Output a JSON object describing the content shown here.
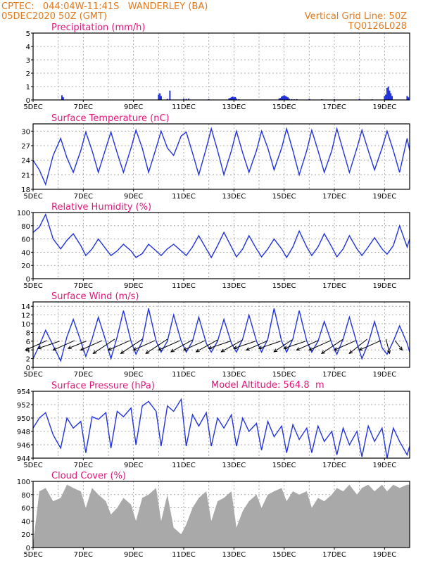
{
  "header": {
    "line1": "CPTEC:   044:04W-11:41S   WANDERLEY (BA)",
    "line2": "05DEC2020 50Z (GMT)",
    "grid_line": "Vertical Grid Line: 50Z",
    "code": "TQ0126L028"
  },
  "model_altitude": "Model Altitude: 564.8  m",
  "colors": {
    "header": "#e07a1f",
    "title": "#e0177a",
    "series": "#2233dd",
    "cloud": "#a9a9a9"
  },
  "chart_data": [
    {
      "id": "precip",
      "type": "bar",
      "title": "Precipitation (mm/h)",
      "ylim": [
        0,
        5
      ],
      "yticks": [
        0,
        1,
        2,
        3,
        4,
        5
      ],
      "xlim": [
        5,
        20
      ],
      "xticks": [
        "5DEC",
        "7DEC",
        "9DEC",
        "11DEC",
        "13DEC",
        "15DEC",
        "17DEC",
        "19DEC"
      ],
      "grid": true,
      "x": [
        6.15,
        6.2,
        10.0,
        10.05,
        10.1,
        10.35,
        10.45,
        11.0,
        11.1,
        11.2,
        12.0,
        12.8,
        12.85,
        12.9,
        12.95,
        13.0,
        13.05,
        13.1,
        13.2,
        14.8,
        14.85,
        14.9,
        14.95,
        15.0,
        15.05,
        15.1,
        15.15,
        15.2,
        15.3,
        15.4,
        15.5,
        16.0,
        16.5,
        17.0,
        18.0,
        18.5,
        19.0,
        19.05,
        19.1,
        19.15,
        19.2,
        19.25,
        19.3,
        19.9,
        19.95
      ],
      "values": [
        0.35,
        0.2,
        0.4,
        0.5,
        0.3,
        0.08,
        0.7,
        0.1,
        0.08,
        0.1,
        0.06,
        0.1,
        0.15,
        0.2,
        0.25,
        0.2,
        0.22,
        0.1,
        0.05,
        0.1,
        0.15,
        0.25,
        0.3,
        0.35,
        0.3,
        0.25,
        0.2,
        0.1,
        0.06,
        0.05,
        0.06,
        0.08,
        0.05,
        0.06,
        0.08,
        0.05,
        0.3,
        0.4,
        0.9,
        1.0,
        0.7,
        0.5,
        0.3,
        0.3,
        0.2
      ]
    },
    {
      "id": "temp",
      "type": "line",
      "title": "Surface Temperature (nC)",
      "ylim": [
        18,
        31.5
      ],
      "yticks": [
        18,
        21,
        24,
        27,
        30
      ],
      "xlim": [
        5,
        20
      ],
      "xticks": [
        "5DEC",
        "7DEC",
        "9DEC",
        "11DEC",
        "13DEC",
        "15DEC",
        "17DEC",
        "19DEC"
      ],
      "grid": true,
      "x": [
        5.0,
        5.25,
        5.5,
        5.8,
        6.1,
        6.35,
        6.6,
        6.9,
        7.1,
        7.35,
        7.6,
        7.9,
        8.1,
        8.35,
        8.6,
        8.9,
        9.1,
        9.35,
        9.6,
        9.9,
        10.1,
        10.35,
        10.6,
        10.9,
        11.1,
        11.35,
        11.6,
        11.9,
        12.1,
        12.35,
        12.6,
        12.9,
        13.1,
        13.35,
        13.6,
        13.9,
        14.1,
        14.35,
        14.6,
        14.9,
        15.1,
        15.35,
        15.6,
        15.9,
        16.1,
        16.35,
        16.6,
        16.9,
        17.1,
        17.35,
        17.6,
        17.9,
        18.1,
        18.35,
        18.6,
        18.9,
        19.1,
        19.35,
        19.6,
        19.9,
        20.0
      ],
      "values": [
        24.0,
        22.0,
        19.0,
        25.0,
        28.5,
        24.5,
        21.5,
        26.0,
        29.8,
        26.0,
        21.5,
        26.5,
        29.8,
        25.5,
        21.5,
        26.5,
        30.2,
        26.5,
        21.5,
        26.5,
        30.0,
        26.5,
        25.0,
        29.0,
        29.8,
        25.5,
        21.0,
        26.5,
        30.5,
        26.0,
        21.0,
        26.0,
        30.0,
        25.5,
        21.5,
        26.0,
        30.0,
        26.5,
        22.0,
        26.5,
        30.5,
        26.0,
        21.0,
        26.0,
        30.2,
        26.0,
        21.5,
        26.0,
        30.5,
        26.0,
        21.5,
        26.5,
        30.2,
        26.0,
        22.0,
        26.5,
        30.0,
        26.0,
        21.5,
        28.5,
        26.0
      ]
    },
    {
      "id": "rh",
      "type": "line",
      "title": "Relative Humidity (%)",
      "ylim": [
        0,
        100
      ],
      "yticks": [
        0,
        20,
        40,
        60,
        80,
        100
      ],
      "xlim": [
        5,
        20
      ],
      "xticks": [
        "5DEC",
        "7DEC",
        "9DEC",
        "11DEC",
        "13DEC",
        "15DEC",
        "17DEC",
        "19DEC"
      ],
      "grid": true,
      "x": [
        5.0,
        5.25,
        5.5,
        5.8,
        6.1,
        6.35,
        6.6,
        6.9,
        7.1,
        7.35,
        7.6,
        7.9,
        8.1,
        8.35,
        8.6,
        8.9,
        9.1,
        9.35,
        9.6,
        9.9,
        10.1,
        10.35,
        10.6,
        10.9,
        11.1,
        11.35,
        11.6,
        11.9,
        12.1,
        12.35,
        12.6,
        12.9,
        13.1,
        13.35,
        13.6,
        13.9,
        14.1,
        14.35,
        14.6,
        14.9,
        15.1,
        15.35,
        15.6,
        15.9,
        16.1,
        16.35,
        16.6,
        16.9,
        17.1,
        17.35,
        17.6,
        17.9,
        18.1,
        18.35,
        18.6,
        18.9,
        19.1,
        19.35,
        19.6,
        19.9,
        20.0
      ],
      "values": [
        70.0,
        78.0,
        97.0,
        60.0,
        45.0,
        58.0,
        68.0,
        50.0,
        35.0,
        45.0,
        60.0,
        45.0,
        35.0,
        42.0,
        52.0,
        42.0,
        32.0,
        38.0,
        52.0,
        42.0,
        35.0,
        45.0,
        52.0,
        42.0,
        35.0,
        48.0,
        65.0,
        45.0,
        32.0,
        50.0,
        70.0,
        48.0,
        33.0,
        45.0,
        65.0,
        45.0,
        33.0,
        45.0,
        60.0,
        45.0,
        32.0,
        48.0,
        72.0,
        48.0,
        35.0,
        48.0,
        68.0,
        48.0,
        33.0,
        45.0,
        65.0,
        45.0,
        35.0,
        48.0,
        62.0,
        45.0,
        37.0,
        50.0,
        80.0,
        48.0,
        60.0
      ]
    },
    {
      "id": "wind",
      "type": "line",
      "title": "Surface Wind (m/s)",
      "ylim": [
        0,
        15
      ],
      "yticks": [
        0,
        2,
        4,
        6,
        8,
        10,
        12,
        14
      ],
      "xlim": [
        5,
        20
      ],
      "xticks": [
        "5DEC",
        "7DEC",
        "9DEC",
        "11DEC",
        "13DEC",
        "15DEC",
        "17DEC",
        "19DEC"
      ],
      "grid": true,
      "x": [
        5.0,
        5.25,
        5.5,
        5.8,
        6.1,
        6.35,
        6.6,
        6.9,
        7.1,
        7.35,
        7.6,
        7.9,
        8.1,
        8.35,
        8.6,
        8.9,
        9.1,
        9.35,
        9.6,
        9.9,
        10.1,
        10.35,
        10.6,
        10.9,
        11.1,
        11.35,
        11.6,
        11.9,
        12.1,
        12.35,
        12.6,
        12.9,
        13.1,
        13.35,
        13.6,
        13.9,
        14.1,
        14.35,
        14.6,
        14.9,
        15.1,
        15.35,
        15.6,
        15.9,
        16.1,
        16.35,
        16.6,
        16.9,
        17.1,
        17.35,
        17.6,
        17.9,
        18.1,
        18.35,
        18.6,
        18.9,
        19.1,
        19.35,
        19.6,
        19.9,
        20.0
      ],
      "values": [
        2.0,
        5.0,
        8.5,
        5.0,
        1.5,
        7.0,
        11.0,
        6.0,
        2.5,
        6.5,
        11.5,
        6.0,
        2.0,
        7.0,
        13.0,
        6.0,
        3.0,
        6.0,
        13.5,
        6.0,
        3.5,
        6.0,
        12.0,
        6.0,
        3.5,
        6.0,
        11.5,
        5.5,
        3.5,
        6.0,
        11.0,
        5.5,
        3.5,
        6.5,
        12.0,
        6.0,
        3.5,
        6.5,
        13.5,
        6.0,
        3.5,
        6.5,
        13.0,
        6.0,
        3.5,
        6.0,
        10.5,
        5.5,
        3.0,
        6.5,
        11.5,
        5.5,
        2.0,
        5.5,
        10.5,
        4.5,
        3.0,
        6.0,
        9.5,
        5.5,
        3.5
      ],
      "arrows": {
        "x": [
          5.3,
          5.8,
          6.4,
          6.9,
          7.5,
          8.0,
          8.6,
          9.1,
          9.6,
          10.1,
          10.6,
          11.1,
          11.6,
          12.1,
          12.6,
          13.1,
          13.6,
          14.1,
          14.6,
          15.1,
          15.6,
          16.1,
          16.6,
          17.1,
          17.6,
          18.1,
          18.6,
          19.1,
          19.5
        ],
        "dx": [
          6,
          6,
          6,
          5,
          6,
          6,
          6,
          6,
          6,
          6,
          6,
          6,
          6,
          6,
          6,
          6,
          6,
          6,
          6,
          5,
          6,
          6,
          6,
          6,
          6,
          5,
          6,
          -1,
          -2
        ],
        "dy": [
          -4,
          -3,
          -4,
          -3,
          -4,
          -6,
          -4,
          -6,
          -4,
          -6,
          -4,
          -5,
          -4,
          -5,
          -3,
          -5,
          -3,
          -4,
          -3,
          -5,
          -3,
          -4,
          -4,
          -6,
          -4,
          -6,
          -4,
          -6,
          -4
        ]
      }
    },
    {
      "id": "pressure",
      "type": "line",
      "title": "Surface Pressure (hPa)",
      "ylim": [
        944,
        954
      ],
      "yticks": [
        944,
        946,
        948,
        950,
        952,
        954
      ],
      "xlim": [
        5,
        20
      ],
      "xticks": [
        "5DEC",
        "7DEC",
        "9DEC",
        "11DEC",
        "13DEC",
        "15DEC",
        "17DEC",
        "19DEC"
      ],
      "grid": true,
      "x": [
        5.0,
        5.25,
        5.5,
        5.8,
        6.1,
        6.35,
        6.6,
        6.9,
        7.1,
        7.35,
        7.6,
        7.9,
        8.1,
        8.35,
        8.6,
        8.9,
        9.1,
        9.35,
        9.6,
        9.9,
        10.1,
        10.35,
        10.6,
        10.9,
        11.1,
        11.35,
        11.6,
        11.9,
        12.1,
        12.35,
        12.6,
        12.9,
        13.1,
        13.35,
        13.6,
        13.9,
        14.1,
        14.35,
        14.6,
        14.9,
        15.1,
        15.35,
        15.6,
        15.9,
        16.1,
        16.35,
        16.6,
        16.9,
        17.1,
        17.35,
        17.6,
        17.9,
        18.1,
        18.35,
        18.6,
        18.9,
        19.1,
        19.35,
        19.6,
        19.9,
        20.0
      ],
      "values": [
        948.5,
        950.0,
        950.8,
        947.5,
        945.5,
        950.0,
        948.5,
        949.5,
        944.8,
        950.2,
        949.8,
        950.8,
        945.5,
        951.0,
        950.2,
        951.5,
        946.0,
        951.8,
        952.5,
        951.0,
        945.8,
        951.8,
        951.0,
        952.8,
        945.8,
        950.5,
        948.8,
        950.8,
        945.8,
        950.0,
        948.5,
        950.5,
        945.8,
        950.0,
        948.0,
        949.2,
        945.2,
        949.5,
        947.2,
        948.8,
        944.8,
        949.0,
        946.8,
        948.5,
        944.8,
        948.8,
        946.5,
        948.0,
        944.5,
        948.5,
        946.0,
        948.0,
        944.2,
        948.8,
        946.5,
        948.5,
        944.0,
        948.5,
        946.5,
        944.5,
        945.8
      ]
    },
    {
      "id": "cloud",
      "type": "area",
      "title": "Cloud Cover (%)",
      "ylim": [
        0,
        100
      ],
      "yticks": [
        0,
        20,
        40,
        60,
        80,
        100
      ],
      "xlim": [
        5,
        20
      ],
      "xticks": [
        "5DEC",
        "7DEC",
        "9DEC",
        "11DEC",
        "13DEC",
        "15DEC",
        "17DEC",
        "19DEC"
      ],
      "grid": true,
      "x": [
        5.0,
        5.25,
        5.5,
        5.8,
        6.1,
        6.35,
        6.6,
        6.9,
        7.1,
        7.35,
        7.6,
        7.9,
        8.1,
        8.35,
        8.6,
        8.9,
        9.1,
        9.35,
        9.6,
        9.9,
        10.1,
        10.35,
        10.6,
        10.9,
        11.1,
        11.35,
        11.6,
        11.9,
        12.1,
        12.35,
        12.6,
        12.9,
        13.1,
        13.35,
        13.6,
        13.9,
        14.1,
        14.35,
        14.6,
        14.9,
        15.1,
        15.35,
        15.6,
        15.9,
        16.1,
        16.35,
        16.6,
        16.9,
        17.1,
        17.35,
        17.6,
        17.9,
        18.1,
        18.35,
        18.6,
        18.9,
        19.1,
        19.35,
        19.6,
        19.9,
        20.0
      ],
      "values": [
        5,
        85,
        90,
        70,
        75,
        95,
        90,
        85,
        60,
        90,
        80,
        70,
        50,
        60,
        75,
        65,
        40,
        75,
        80,
        90,
        40,
        80,
        30,
        20,
        35,
        60,
        75,
        85,
        40,
        70,
        75,
        85,
        30,
        55,
        70,
        80,
        60,
        80,
        85,
        90,
        70,
        85,
        80,
        85,
        60,
        75,
        70,
        80,
        90,
        85,
        95,
        80,
        90,
        95,
        85,
        95,
        85,
        95,
        90,
        95,
        95
      ]
    }
  ]
}
